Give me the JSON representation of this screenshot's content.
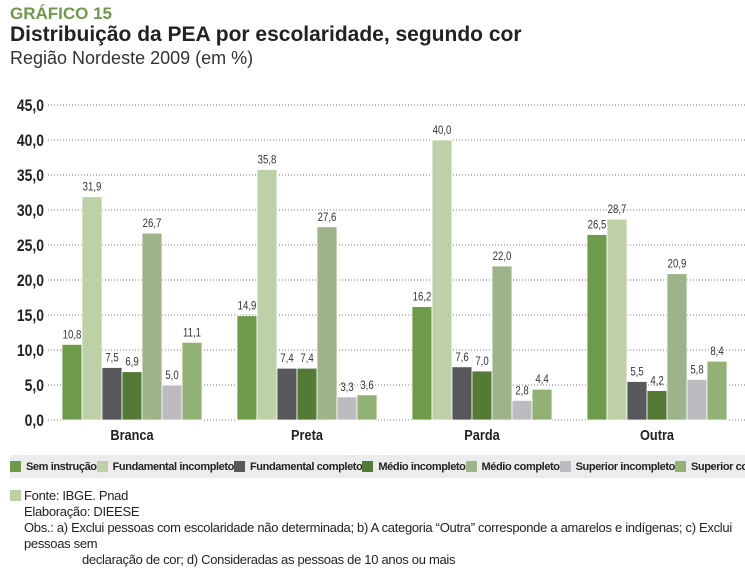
{
  "header": {
    "kicker": "GRÁFICO 15",
    "title": "Distribuição da PEA por escolaridade, segundo cor",
    "subtitle": "Região Nordeste 2009 (em %)"
  },
  "chart_data": {
    "type": "bar",
    "categories": [
      "Branca",
      "Preta",
      "Parda",
      "Outra"
    ],
    "ylim": [
      0,
      45
    ],
    "yticks": [
      "0,0",
      "5,0",
      "10,0",
      "15,0",
      "20,0",
      "25,0",
      "30,0",
      "35,0",
      "40,0",
      "45,0"
    ],
    "grid": true,
    "legend_position": "bottom",
    "series": [
      {
        "name": "Sem instrução",
        "color": "#6e9a4a",
        "values": [
          10.8,
          14.9,
          16.2,
          26.5
        ],
        "labels": [
          "10,8",
          "14,9",
          "16,2",
          "26,5"
        ]
      },
      {
        "name": "Fundamental incompleto",
        "color": "#bdd0a8",
        "values": [
          31.9,
          35.8,
          40.0,
          28.7
        ],
        "labels": [
          "31,9",
          "35,8",
          "40,0",
          "28,7"
        ]
      },
      {
        "name": "Fundamental completo",
        "color": "#58585a",
        "values": [
          7.5,
          7.4,
          7.6,
          5.5
        ],
        "labels": [
          "7,5",
          "7,4",
          "7,6",
          "5,5"
        ]
      },
      {
        "name": "Médio incompleto",
        "color": "#557a35",
        "values": [
          6.9,
          7.4,
          7.0,
          4.2
        ],
        "labels": [
          "6,9",
          "7,4",
          "7,0",
          "4,2"
        ]
      },
      {
        "name": "Médio completo",
        "color": "#9db38a",
        "values": [
          26.7,
          27.6,
          22.0,
          20.9
        ],
        "labels": [
          "26,7",
          "27,6",
          "22,0",
          "20,9"
        ]
      },
      {
        "name": "Superior incompleto",
        "color": "#bcbcc0",
        "values": [
          5.0,
          3.3,
          2.8,
          5.8
        ],
        "labels": [
          "5,0",
          "3,3",
          "2,8",
          "5,8"
        ]
      },
      {
        "name": "Superior completo",
        "color": "#94b175",
        "values": [
          11.1,
          3.6,
          4.4,
          8.4
        ],
        "labels": [
          "11,1",
          "3,6",
          "4,4",
          "8,4"
        ]
      }
    ]
  },
  "notes": {
    "source": "Fonte: IBGE. Pnad",
    "elaboration": "Elaboração: DIEESE",
    "obs_line1": "Obs.:  a) Exclui pessoas com escolaridade não determinada; b) A categoria “Outra” corresponde a amarelos e indígenas; c) Exclui pessoas sem",
    "obs_line2": "declaração de cor; d) Consideradas as pessoas de 10 anos ou mais"
  }
}
